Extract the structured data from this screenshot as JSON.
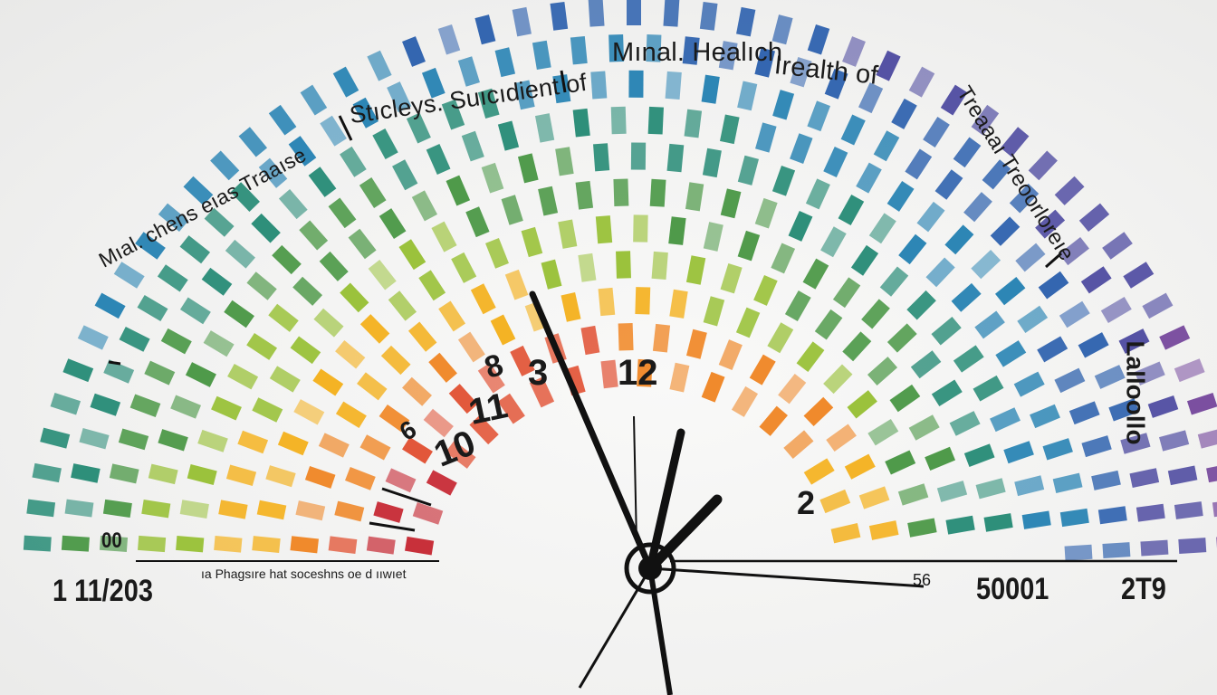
{
  "title_left": "Stıcleys. Suıcıdient of",
  "title_mid": "Mınal. Healıch",
  "title_right": "Irealth of",
  "title_arc_right": "Treaaaı Treoorloreıe",
  "arc_left_text": "Mıal. chens eıas Traaıse",
  "side_right_text": "Lalloollo",
  "axis": {
    "left_number": "1 11/203",
    "caption": "ıa Phagsıre hat soceshns oe d ııwıet",
    "mid_number": "56",
    "right_number": "50001",
    "far_right_number": "2T9",
    "left_small": "00"
  },
  "dial_numbers": [
    "8",
    "11",
    "3",
    "12",
    "10",
    "6",
    "2"
  ],
  "hands_label": "clock-hands",
  "colors": {
    "background": "#f3f3f2",
    "hand": "#111111",
    "spectrum": [
      "#c8303a",
      "#e2573a",
      "#f08a2c",
      "#f4b324",
      "#9bc23c",
      "#4f9a4a",
      "#2e8f7a",
      "#2d86b5",
      "#3466b0",
      "#5552a4",
      "#7b4fa0"
    ]
  }
}
